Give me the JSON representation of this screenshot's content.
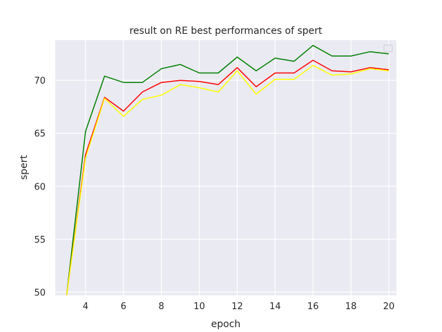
{
  "chart_data": {
    "type": "line",
    "title": "result on RE best performances of spert",
    "xlabel": "epoch",
    "ylabel": "spert",
    "x": [
      3,
      4,
      5,
      6,
      7,
      8,
      9,
      10,
      11,
      12,
      13,
      14,
      15,
      16,
      17,
      18,
      19,
      20
    ],
    "xlim": [
      2.4,
      20.4
    ],
    "ylim": [
      49.7,
      73.8
    ],
    "xticks": [
      4,
      6,
      8,
      10,
      12,
      14,
      16,
      18,
      20
    ],
    "yticks": [
      50,
      55,
      60,
      65,
      70
    ],
    "grid": true,
    "legend": "top-right",
    "series": [
      {
        "color": "#008000",
        "values": [
          49.5,
          65.2,
          70.4,
          69.8,
          69.8,
          71.1,
          71.5,
          70.7,
          70.7,
          72.2,
          70.9,
          72.1,
          71.8,
          73.3,
          72.3,
          72.3,
          72.7,
          72.5
        ]
      },
      {
        "color": "#ff0000",
        "values": [
          49.5,
          63.0,
          68.4,
          67.1,
          68.9,
          69.8,
          70.0,
          69.9,
          69.6,
          71.2,
          69.4,
          70.7,
          70.7,
          71.9,
          70.9,
          70.8,
          71.2,
          71.0
        ]
      },
      {
        "color": "#ffff00",
        "values": [
          49.5,
          62.7,
          68.3,
          66.6,
          68.2,
          68.6,
          69.6,
          69.3,
          68.9,
          70.9,
          68.7,
          70.1,
          70.1,
          71.4,
          70.5,
          70.6,
          71.1,
          70.9
        ]
      }
    ]
  }
}
